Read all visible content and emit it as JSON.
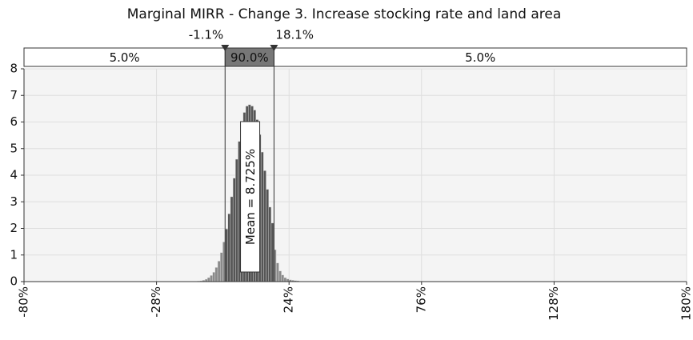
{
  "chart_data": {
    "type": "histogram",
    "title": "Marginal MIRR - Change 3. Increase stocking rate and land area",
    "bins": [
      -12,
      -11,
      -10,
      -9,
      -8,
      -7,
      -6,
      -5,
      -4,
      -3,
      -2,
      -1,
      0,
      1,
      2,
      3,
      4,
      5,
      6,
      7,
      8,
      9,
      10,
      11,
      12,
      13,
      14,
      15,
      16,
      17,
      18,
      19,
      20,
      21,
      22,
      23,
      24,
      25,
      26,
      27,
      28
    ],
    "values": [
      0.02,
      0.03,
      0.05,
      0.09,
      0.15,
      0.23,
      0.35,
      0.53,
      0.77,
      1.09,
      1.49,
      1.98,
      2.55,
      3.19,
      3.89,
      4.6,
      5.27,
      5.88,
      6.36,
      6.6,
      6.65,
      6.6,
      6.45,
      6.09,
      5.53,
      4.87,
      4.17,
      3.47,
      2.8,
      2.2,
      1.2,
      0.7,
      0.4,
      0.25,
      0.15,
      0.1,
      0.07,
      0.05,
      0.04,
      0.03
    ],
    "color": "#555555",
    "tail_color": "#8a8a8a",
    "xlim": [
      -80,
      180
    ],
    "xticks": [
      {
        "value": -80,
        "label": "-80%"
      },
      {
        "value": -28,
        "label": "-28%"
      },
      {
        "value": 24,
        "label": "24%"
      },
      {
        "value": 76,
        "label": "76%"
      },
      {
        "value": 128,
        "label": "128%"
      },
      {
        "value": 180,
        "label": "180%"
      }
    ],
    "ylim": [
      0,
      8
    ],
    "yticks": [
      0,
      1,
      2,
      3,
      4,
      5,
      6,
      7,
      8
    ],
    "grid": true,
    "delimiters": [
      {
        "value": -1.1,
        "label": "-1.1%"
      },
      {
        "value": 18.1,
        "label": "18.1%"
      }
    ],
    "band_labels": [
      {
        "value": 5.0,
        "label": "5.0%"
      },
      {
        "value": 90.0,
        "label": "90.0%"
      },
      {
        "value": 5.0,
        "label": "5.0%"
      }
    ],
    "mean": {
      "value": 8.725,
      "label": "Mean = 8.725%"
    }
  }
}
